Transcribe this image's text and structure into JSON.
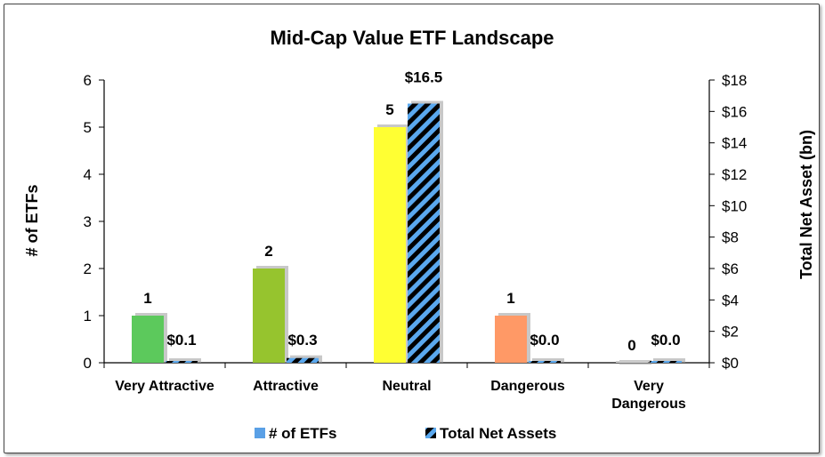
{
  "chart_data": {
    "type": "bar",
    "title": "Mid-Cap Value ETF Landscape",
    "categories": [
      "Very Attractive",
      "Attractive",
      "Neutral",
      "Dangerous",
      "Very Dangerous"
    ],
    "ylabel": "# of ETFs",
    "y2label": "Total Net Asset (bn)",
    "ylim": [
      0,
      6
    ],
    "y2lim": [
      0,
      18
    ],
    "yticks": [
      "0",
      "1",
      "2",
      "3",
      "4",
      "5",
      "6"
    ],
    "y2ticks": [
      "$0",
      "$2",
      "$4",
      "$6",
      "$8",
      "$10",
      "$12",
      "$14",
      "$16",
      "$18"
    ],
    "legend_position": "bottom",
    "series": [
      {
        "name": "# of ETFs",
        "axis": "left",
        "values": [
          1,
          2,
          5,
          1,
          0
        ],
        "labels": [
          "1",
          "2",
          "5",
          "1",
          "0"
        ],
        "colors": [
          "#5cc95c",
          "#96c42e",
          "#ffff33",
          "#ff9966",
          "#cccccc"
        ],
        "legend_color": "#5aa0e6"
      },
      {
        "name": "Total Net Assets",
        "axis": "right",
        "values": [
          0.1,
          0.3,
          16.5,
          0.0,
          0.0
        ],
        "labels": [
          "$0.1",
          "$0.3",
          "$16.5",
          "$0.0",
          "$0.0"
        ],
        "colors": [
          "#4f9be0",
          "#4f9be0",
          "#4f9be0",
          "#4f9be0",
          "#4f9be0"
        ],
        "pattern": "diagonal-stripes"
      }
    ]
  }
}
